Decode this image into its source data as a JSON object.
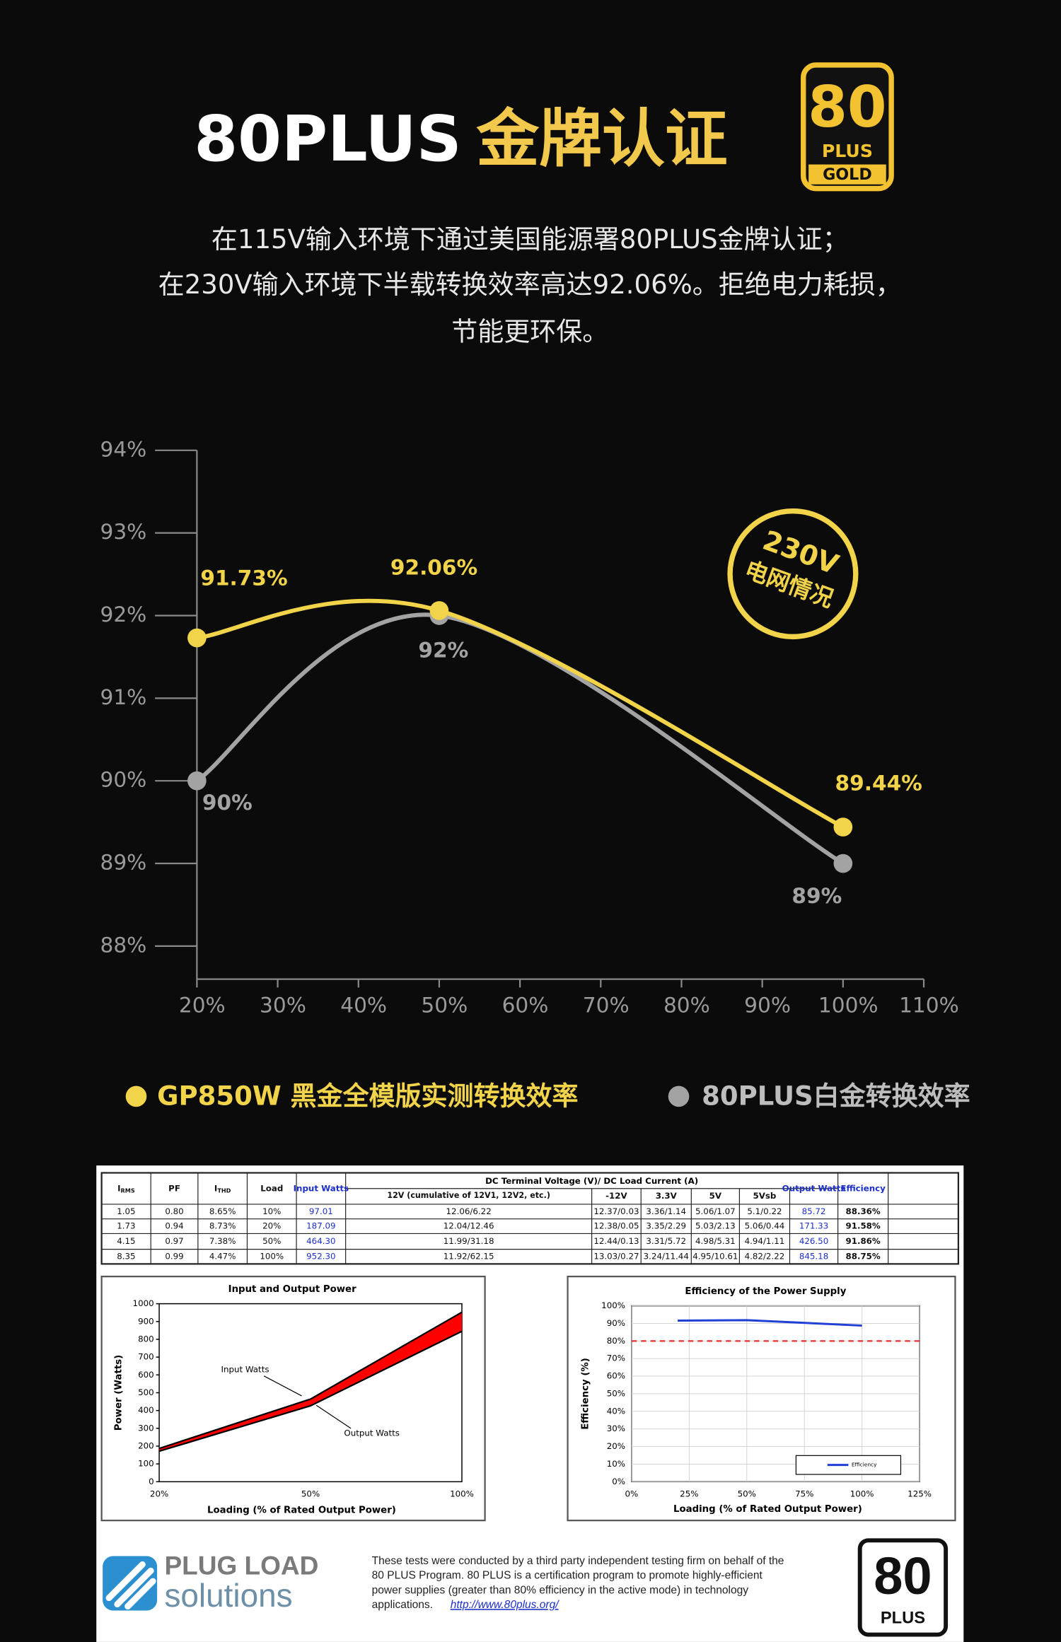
{
  "header": {
    "title": "80PLUS",
    "title_highlight": "金牌认证",
    "logo": {
      "number": "80",
      "plus": "PLUS",
      "grade": "GOLD"
    },
    "subtitle": [
      "在115V输入环境下通过美国能源署80PLUS金牌认证；",
      "在230V输入环境下半载转换效率高达92.06%。拒绝电力耗损，",
      "节能更环保。"
    ]
  },
  "chart_data": [
    {
      "type": "line",
      "x": [
        20,
        50,
        100
      ],
      "series": [
        {
          "name": "GP850W 黑金全模版实测转换效率",
          "color": "#f2d44a",
          "values": [
            91.73,
            92.06,
            89.44
          ],
          "value_labels": [
            "91.73%",
            "92.06%",
            "89.44%"
          ]
        },
        {
          "name": "80PLUS白金转换效率",
          "color": "#a3a3a3",
          "values": [
            90,
            92,
            89
          ],
          "value_labels": [
            "90%",
            "92%",
            "89%"
          ]
        }
      ],
      "xlim": [
        20,
        110
      ],
      "xticks": [
        {
          "value": 20,
          "label": "20%"
        },
        {
          "value": 30,
          "label": "30%"
        },
        {
          "value": 40,
          "label": "40%"
        },
        {
          "value": 50,
          "label": "50%"
        },
        {
          "value": 60,
          "label": "60%"
        },
        {
          "value": 70,
          "label": "70%"
        },
        {
          "value": 80,
          "label": "80%"
        },
        {
          "value": 90,
          "label": "90%"
        },
        {
          "value": 100,
          "label": "100%"
        },
        {
          "value": 110,
          "label": "110%"
        }
      ],
      "ylim": [
        87.6,
        94
      ],
      "yticks": [
        {
          "value": 88,
          "label": "88%"
        },
        {
          "value": 89,
          "label": "89%"
        },
        {
          "value": 90,
          "label": "90%"
        },
        {
          "value": 91,
          "label": "91%"
        },
        {
          "value": 92,
          "label": "92%"
        },
        {
          "value": 93,
          "label": "93%"
        },
        {
          "value": 94,
          "label": "94%"
        }
      ],
      "annotation": [
        "230V",
        "电网情况"
      ]
    },
    {
      "type": "line",
      "title": "Input and Output Power",
      "categories": [
        "20%",
        "50%",
        "100%"
      ],
      "series": [
        {
          "name": "Input Watts",
          "color": "#000000",
          "values": [
            187.09,
            464.3,
            952.3
          ]
        },
        {
          "name": "Output Watts",
          "color": "#000000",
          "values": [
            171.33,
            426.5,
            845.18
          ]
        }
      ],
      "fill": "#ff0000",
      "ylim": [
        0,
        1000
      ],
      "yticks": [
        0,
        100,
        200,
        300,
        400,
        500,
        600,
        700,
        800,
        900,
        1000
      ],
      "ylabel": "Power (Watts)",
      "xlabel": "Loading (% of Rated Output Power)"
    },
    {
      "type": "line",
      "title": "Efficiency of the Power Supply",
      "x": [
        20,
        50,
        100
      ],
      "series": [
        {
          "name": "Efficiency",
          "color": "#1f3fd6",
          "values": [
            91.58,
            91.86,
            88.75
          ]
        }
      ],
      "threshold": 80,
      "threshold_color": "#e53030",
      "grid": true,
      "xlim": [
        0,
        125
      ],
      "xticks": [
        {
          "value": 0,
          "label": "0%"
        },
        {
          "value": 25,
          "label": "25%"
        },
        {
          "value": 50,
          "label": "50%"
        },
        {
          "value": 75,
          "label": "75%"
        },
        {
          "value": 100,
          "label": "100%"
        },
        {
          "value": 125,
          "label": "125%"
        }
      ],
      "ylim": [
        0,
        100
      ],
      "yticks": [
        {
          "value": 0,
          "label": "0%"
        },
        {
          "value": 10,
          "label": "10%"
        },
        {
          "value": 20,
          "label": "20%"
        },
        {
          "value": 30,
          "label": "30%"
        },
        {
          "value": 40,
          "label": "40%"
        },
        {
          "value": 50,
          "label": "50%"
        },
        {
          "value": 60,
          "label": "60%"
        },
        {
          "value": 70,
          "label": "70%"
        },
        {
          "value": 80,
          "label": "80%"
        },
        {
          "value": 90,
          "label": "90%"
        },
        {
          "value": 100,
          "label": "100%"
        }
      ],
      "ylabel": "Efficiency (%)",
      "xlabel": "Loading (% of Rated Output Power)"
    }
  ],
  "table": {
    "group_header": "DC Terminal Voltage (V)/ DC Load Current (A)",
    "columns": [
      {
        "text": "I",
        "sub": "RMS"
      },
      {
        "text": "PF"
      },
      {
        "text": "I",
        "sub": "THD"
      },
      {
        "text": "Load"
      },
      {
        "text": "Input Watts"
      },
      {
        "text": "12V (cumulative of 12V1, 12V2, etc.)"
      },
      {
        "text": "-12V"
      },
      {
        "text": "3.3V"
      },
      {
        "text": "5V"
      },
      {
        "text": "5Vsb"
      },
      {
        "text": "Output Watts"
      },
      {
        "text": "Efficiency"
      }
    ],
    "rows": [
      [
        "1.05",
        "0.80",
        "8.65%",
        "10%",
        "97.01",
        "12.06/6.22",
        "12.37/0.03",
        "3.36/1.14",
        "5.06/1.07",
        "5.1/0.22",
        "85.72",
        "88.36%"
      ],
      [
        "1.73",
        "0.94",
        "8.73%",
        "20%",
        "187.09",
        "12.04/12.46",
        "12.38/0.05",
        "3.35/2.29",
        "5.03/2.13",
        "5.06/0.44",
        "171.33",
        "91.58%"
      ],
      [
        "4.15",
        "0.97",
        "7.38%",
        "50%",
        "464.30",
        "11.99/31.18",
        "12.44/0.13",
        "3.31/5.72",
        "4.98/5.31",
        "4.94/1.11",
        "426.50",
        "91.86%"
      ],
      [
        "8.35",
        "0.99",
        "4.47%",
        "100%",
        "952.30",
        "11.92/62.15",
        "13.03/0.27",
        "3.24/11.44",
        "4.95/10.61",
        "4.82/2.22",
        "845.18",
        "88.75%"
      ]
    ]
  },
  "footer": {
    "brand": [
      "PLUG LOAD",
      "solutions"
    ],
    "text": [
      "These tests were conducted by a third party independent testing firm on behalf of the",
      "80 PLUS Program. 80 PLUS is a certification program to promote highly-efficient",
      "power supplies (greater than 80% efficiency in the active mode) in technology",
      "applications."
    ],
    "link": "http://www.80plus.org/",
    "logo": {
      "number": "80",
      "plus": "PLUS"
    }
  }
}
